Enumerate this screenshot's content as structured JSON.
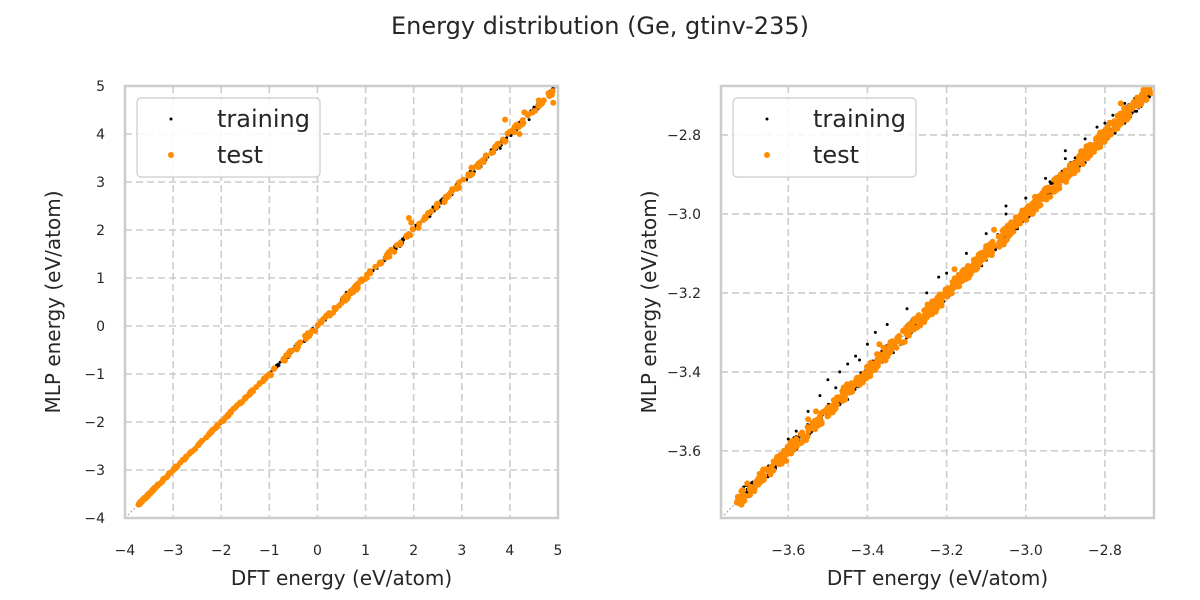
{
  "figure": {
    "title": "Energy distribution (Ge, gtinv-235)"
  },
  "colors": {
    "training": "#000000",
    "test": "#ff8c00",
    "grid": "#cccccc",
    "spine": "#cccccc",
    "diagonal": "#a0a0a0"
  },
  "chart_data": [
    {
      "type": "scatter",
      "title": "",
      "xlabel": "DFT energy (eV/atom)",
      "ylabel": "MLP energy (eV/atom)",
      "xlim": [
        -4,
        5
      ],
      "ylim": [
        -4,
        5
      ],
      "xticks": [
        -4,
        -3,
        -2,
        -1,
        0,
        1,
        2,
        3,
        4,
        5
      ],
      "yticks": [
        -4,
        -3,
        -2,
        -1,
        0,
        1,
        2,
        3,
        4,
        5
      ],
      "xtick_labels": [
        "−4",
        "−3",
        "−2",
        "−1",
        "0",
        "1",
        "2",
        "3",
        "4",
        "5"
      ],
      "ytick_labels": [
        "−4",
        "−3",
        "−2",
        "−1",
        "0",
        "1",
        "2",
        "3",
        "4",
        "5"
      ],
      "grid": true,
      "legend": {
        "position": "top-left",
        "entries": [
          "training",
          "test"
        ]
      },
      "reference_line": "y = x",
      "series": [
        {
          "name": "training",
          "points": [
            [
              -3.72,
              -3.71
            ],
            [
              -3.5,
              -3.49
            ],
            [
              -3.2,
              -3.21
            ],
            [
              -2.9,
              -2.89
            ],
            [
              -2.6,
              -2.61
            ],
            [
              -2.3,
              -2.29
            ],
            [
              -2.0,
              -2.01
            ],
            [
              -1.7,
              -1.69
            ],
            [
              -1.4,
              -1.41
            ],
            [
              -1.1,
              -1.08
            ],
            [
              -0.8,
              -0.82
            ],
            [
              -0.5,
              -0.48
            ],
            [
              -0.2,
              -0.22
            ],
            [
              0.1,
              0.12
            ],
            [
              0.3,
              0.28
            ],
            [
              0.5,
              0.55
            ],
            [
              0.7,
              0.66
            ],
            [
              0.9,
              0.93
            ],
            [
              1.1,
              1.08
            ],
            [
              1.3,
              1.35
            ],
            [
              1.5,
              1.46
            ],
            [
              1.7,
              1.74
            ],
            [
              1.9,
              1.86
            ],
            [
              2.1,
              2.15
            ],
            [
              2.3,
              2.27
            ],
            [
              2.5,
              2.56
            ],
            [
              2.7,
              2.66
            ],
            [
              2.9,
              2.95
            ],
            [
              3.1,
              3.05
            ],
            [
              3.3,
              3.36
            ],
            [
              3.5,
              3.46
            ],
            [
              3.7,
              3.75
            ],
            [
              3.9,
              3.85
            ],
            [
              4.1,
              4.16
            ],
            [
              4.3,
              4.25
            ],
            [
              4.5,
              4.56
            ],
            [
              4.7,
              4.65
            ],
            [
              4.85,
              4.9
            ],
            [
              4.9,
              4.95
            ],
            [
              4.4,
              4.3
            ],
            [
              3.4,
              3.32
            ],
            [
              2.4,
              2.48
            ],
            [
              1.6,
              1.52
            ],
            [
              0.6,
              0.7
            ],
            [
              -0.1,
              -0.05
            ],
            [
              4.6,
              4.72
            ],
            [
              3.8,
              3.7
            ]
          ]
        },
        {
          "name": "test",
          "points": [
            [
              -3.72,
              -3.72
            ],
            [
              -3.6,
              -3.58
            ],
            [
              -3.4,
              -3.41
            ],
            [
              -3.2,
              -3.19
            ],
            [
              -3.0,
              -3.01
            ],
            [
              -2.8,
              -2.79
            ],
            [
              -2.6,
              -2.61
            ],
            [
              -2.4,
              -2.39
            ],
            [
              -2.2,
              -2.21
            ],
            [
              -2.0,
              -1.99
            ],
            [
              -1.8,
              -1.81
            ],
            [
              -1.6,
              -1.59
            ],
            [
              -1.4,
              -1.41
            ],
            [
              -1.2,
              -1.19
            ],
            [
              -1.0,
              -1.01
            ],
            [
              -0.7,
              -0.68
            ],
            [
              -0.45,
              -0.47
            ],
            [
              -0.2,
              -0.15
            ],
            [
              0.2,
              0.22
            ],
            [
              0.5,
              0.48
            ],
            [
              0.9,
              0.95
            ],
            [
              1.1,
              1.1
            ],
            [
              1.5,
              1.55
            ],
            [
              1.9,
              2.25
            ],
            [
              1.95,
              2.15
            ],
            [
              2.3,
              2.35
            ],
            [
              2.5,
              2.55
            ],
            [
              2.8,
              2.85
            ],
            [
              3.2,
              3.3
            ],
            [
              3.5,
              3.55
            ],
            [
              3.9,
              4.3
            ],
            [
              4.0,
              4.05
            ],
            [
              4.1,
              4.15
            ],
            [
              4.3,
              4.45
            ],
            [
              4.6,
              4.7
            ],
            [
              4.9,
              4.65
            ],
            [
              4.8,
              4.85
            ],
            [
              4.2,
              4.0
            ]
          ]
        }
      ]
    },
    {
      "type": "scatter",
      "title": "",
      "xlabel": "DFT energy (eV/atom)",
      "ylabel": "MLP energy (eV/atom)",
      "xlim": [
        -3.77,
        -2.676
      ],
      "ylim": [
        -3.77,
        -2.676
      ],
      "xticks": [
        -3.6,
        -3.4,
        -3.2,
        -3.0,
        -2.8
      ],
      "yticks": [
        -3.6,
        -3.4,
        -3.2,
        -3.0,
        -2.8
      ],
      "xtick_labels": [
        "−3.6",
        "−3.4",
        "−3.2",
        "−3.0",
        "−2.8"
      ],
      "ytick_labels": [
        "−3.6",
        "−3.4",
        "−3.2",
        "−3.0",
        "−2.8"
      ],
      "grid": true,
      "legend": {
        "position": "top-left",
        "entries": [
          "training",
          "test"
        ]
      },
      "reference_line": "y = x",
      "series": [
        {
          "name": "training",
          "points": [
            [
              -3.7,
              -3.69
            ],
            [
              -3.65,
              -3.64
            ],
            [
              -3.6,
              -3.57
            ],
            [
              -3.58,
              -3.55
            ],
            [
              -3.55,
              -3.5
            ],
            [
              -3.52,
              -3.46
            ],
            [
              -3.5,
              -3.42
            ],
            [
              -3.47,
              -3.4
            ],
            [
              -3.45,
              -3.38
            ],
            [
              -3.43,
              -3.36
            ],
            [
              -3.4,
              -3.33
            ],
            [
              -3.38,
              -3.3
            ],
            [
              -3.35,
              -3.28
            ],
            [
              -3.3,
              -3.24
            ],
            [
              -3.25,
              -3.2
            ],
            [
              -3.2,
              -3.15
            ],
            [
              -3.15,
              -3.1
            ],
            [
              -3.1,
              -3.05
            ],
            [
              -3.05,
              -3.0
            ],
            [
              -3.0,
              -2.96
            ],
            [
              -2.95,
              -2.91
            ],
            [
              -2.9,
              -2.86
            ],
            [
              -2.85,
              -2.81
            ],
            [
              -2.8,
              -2.77
            ],
            [
              -2.75,
              -2.72
            ],
            [
              -2.7,
              -2.69
            ],
            [
              -3.5,
              -3.5
            ],
            [
              -3.4,
              -3.41
            ],
            [
              -3.3,
              -3.31
            ],
            [
              -3.2,
              -3.21
            ],
            [
              -3.1,
              -3.11
            ],
            [
              -3.0,
              -3.01
            ],
            [
              -2.9,
              -2.91
            ],
            [
              -2.8,
              -2.82
            ],
            [
              -3.62,
              -3.62
            ],
            [
              -3.55,
              -3.56
            ],
            [
              -3.45,
              -3.47
            ],
            [
              -3.35,
              -3.36
            ],
            [
              -3.25,
              -3.26
            ],
            [
              -3.15,
              -3.16
            ],
            [
              -3.05,
              -3.06
            ],
            [
              -2.95,
              -2.96
            ],
            [
              -2.85,
              -2.87
            ],
            [
              -2.75,
              -2.77
            ],
            [
              -3.48,
              -3.44
            ],
            [
              -3.42,
              -3.37
            ],
            [
              -3.22,
              -3.16
            ],
            [
              -3.05,
              -2.98
            ],
            [
              -2.9,
              -2.84
            ],
            [
              -2.82,
              -2.78
            ],
            [
              -2.78,
              -2.75
            ],
            [
              -2.72,
              -2.74
            ]
          ]
        },
        {
          "name": "test",
          "points": [
            [
              -3.72,
              -3.72
            ],
            [
              -3.68,
              -3.68
            ],
            [
              -3.62,
              -3.61
            ],
            [
              -3.58,
              -3.57
            ],
            [
              -3.55,
              -3.52
            ],
            [
              -3.53,
              -3.5
            ],
            [
              -3.5,
              -3.49
            ],
            [
              -3.45,
              -3.44
            ],
            [
              -3.4,
              -3.39
            ],
            [
              -3.37,
              -3.33
            ],
            [
              -3.35,
              -3.34
            ],
            [
              -3.3,
              -3.29
            ],
            [
              -3.25,
              -3.24
            ],
            [
              -3.2,
              -3.19
            ],
            [
              -3.15,
              -3.14
            ],
            [
              -3.1,
              -3.09
            ],
            [
              -3.05,
              -3.04
            ],
            [
              -3.0,
              -2.99
            ],
            [
              -2.95,
              -2.94
            ],
            [
              -2.9,
              -2.89
            ],
            [
              -2.85,
              -2.84
            ],
            [
              -2.8,
              -2.79
            ],
            [
              -2.75,
              -2.74
            ],
            [
              -2.7,
              -2.7
            ],
            [
              -2.69,
              -2.69
            ],
            [
              -3.18,
              -3.14
            ],
            [
              -3.08,
              -3.04
            ],
            [
              -3.12,
              -3.13
            ],
            [
              -3.02,
              -3.01
            ],
            [
              -2.92,
              -2.93
            ],
            [
              -2.82,
              -2.82
            ],
            [
              -2.76,
              -2.72
            ]
          ]
        }
      ]
    }
  ]
}
